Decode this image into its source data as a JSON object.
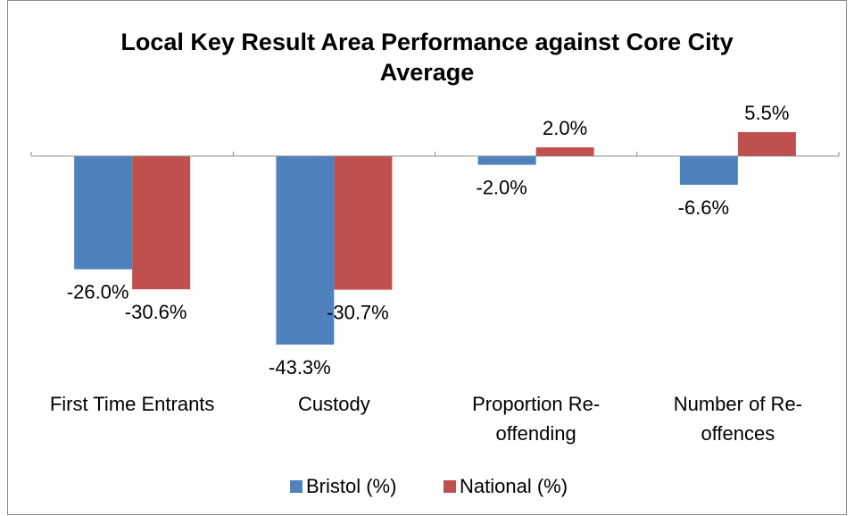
{
  "chart_data": {
    "type": "bar",
    "title": "Local Key Result Area Performance against Core City Average",
    "categories": [
      "First Time Entrants",
      "Custody",
      "Proportion Re-offending",
      "Number of Re-offences"
    ],
    "series": [
      {
        "name": "Bristol (%)",
        "color": "#4f81bd",
        "values": [
          -26.0,
          -43.3,
          -2.0,
          -6.6
        ],
        "value_labels": [
          "-26.0%",
          "-43.3%",
          "-2.0%",
          "-6.6%"
        ]
      },
      {
        "name": "National (%)",
        "color": "#c0504d",
        "values": [
          -30.6,
          -30.7,
          2.0,
          5.5
        ],
        "value_labels": [
          "-30.6%",
          "-30.7%",
          "2.0%",
          "5.5%"
        ]
      }
    ],
    "legend": "bottom"
  }
}
